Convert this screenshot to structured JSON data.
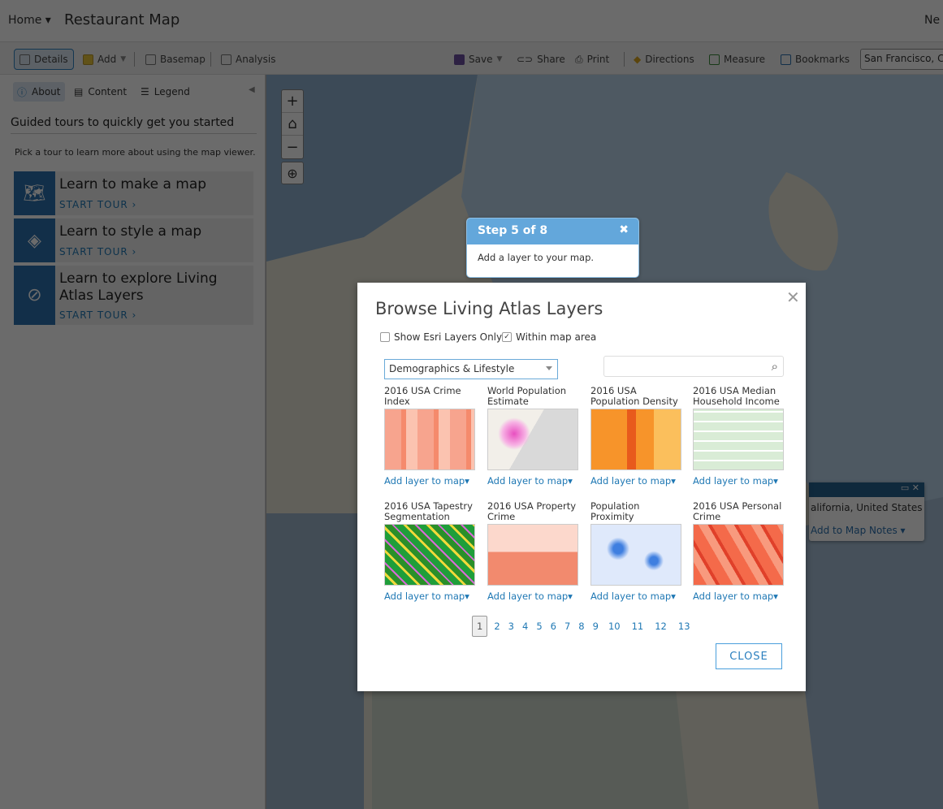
{
  "header": {
    "home_label": "Home ▾",
    "title": "Restaurant Map",
    "new_label": "Ne"
  },
  "toolbar": {
    "details": "Details",
    "add": "Add",
    "basemap": "Basemap",
    "analysis": "Analysis",
    "save": "Save",
    "share": "Share",
    "print": "Print",
    "directions": "Directions",
    "measure": "Measure",
    "bookmarks": "Bookmarks",
    "location_value": "San Francisco, Ca"
  },
  "panel": {
    "tabs": [
      {
        "label": "About"
      },
      {
        "label": "Content"
      },
      {
        "label": "Legend"
      }
    ],
    "heading": "Guided tours to quickly get you started",
    "intro": "Pick a tour to learn more about using the map viewer.",
    "tours": [
      {
        "title": "Learn to make a map",
        "action": "START TOUR ›"
      },
      {
        "title": "Learn to style a map",
        "action": "START TOUR ›"
      },
      {
        "title": "Learn to explore Living Atlas Layers",
        "action": "START TOUR ›"
      }
    ]
  },
  "map_popup": {
    "text": "alifornia, United States",
    "link": "Add to Map Notes ▾"
  },
  "dialog": {
    "title": "Browse Living Atlas Layers",
    "show_esri_only": {
      "label": "Show Esri Layers Only",
      "checked": false
    },
    "within_map_area": {
      "label": "Within map area",
      "checked": true
    },
    "category": "Demographics & Lifestyle",
    "search_placeholder": "",
    "layers": [
      {
        "title": "2016 USA Crime Index",
        "action": "Add layer to map▾"
      },
      {
        "title": "World Population Estimate",
        "action": "Add layer to map▾"
      },
      {
        "title": "2016 USA Population Density",
        "action": "Add layer to map▾"
      },
      {
        "title": "2016 USA Median Household Income",
        "action": "Add layer to map▾"
      },
      {
        "title": "2016 USA Tapestry Segmentation",
        "action": "Add layer to map▾"
      },
      {
        "title": "2016 USA Property Crime",
        "action": "Add layer to map▾"
      },
      {
        "title": "Population Proximity",
        "action": "Add layer to map▾"
      },
      {
        "title": "2016 USA Personal Crime",
        "action": "Add layer to map▾"
      }
    ],
    "pages": [
      "1",
      "2",
      "3",
      "4",
      "5",
      "6",
      "7",
      "8",
      "9",
      "10",
      "11",
      "12",
      "13"
    ],
    "current_page": "1",
    "close_label": "CLOSE"
  },
  "tour_step": {
    "title": "Step 5 of 8",
    "body": "Add a layer to your map."
  }
}
